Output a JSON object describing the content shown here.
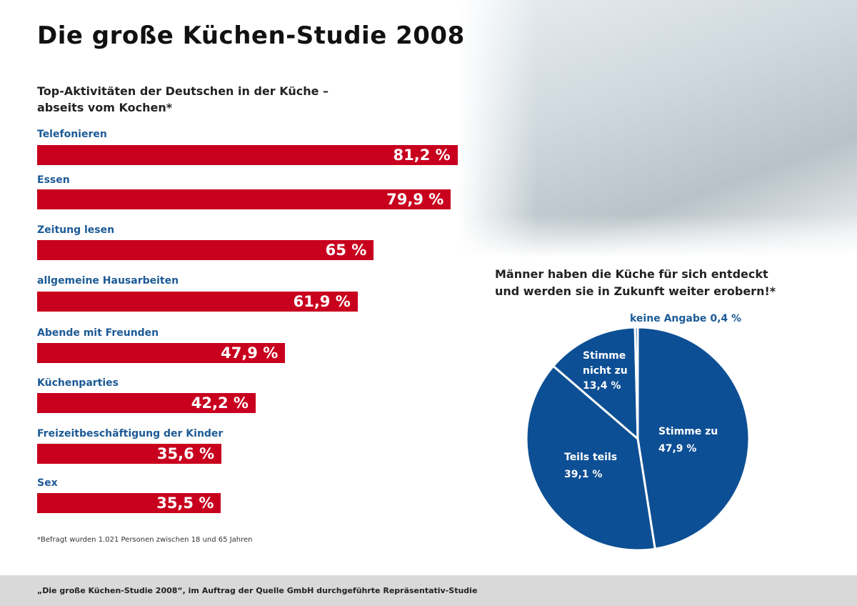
{
  "title": "Die große Küchen-Studie 2008",
  "footnote": "*Befragt wurden 1.021 Personen zwischen 18 und 65 Jahren",
  "footer": "„Die große Küchen-Studie 2008“, im Auftrag der Quelle GmbH durchgeführte Repräsentativ-Studie",
  "colors": {
    "bar": "#c8001e",
    "pie": "#0d4f94",
    "label": "#1c5a96"
  },
  "chart_data": [
    {
      "type": "bar",
      "orientation": "horizontal",
      "title_lines": [
        "Top-Aktivitäten der Deutschen in der Küche –",
        "abseits vom Kochen*"
      ],
      "categories": [
        "Telefonieren",
        "Essen",
        "Zeitung lesen",
        "allgemeine Hausarbeiten",
        "Abende mit Freunden",
        "Küchenparties",
        "Freizeitbeschäftigung der Kinder",
        "Sex"
      ],
      "values": [
        81.2,
        79.9,
        65,
        61.9,
        47.9,
        42.2,
        35.6,
        35.5
      ],
      "data_labels": [
        "81,2 %",
        "79,9 %",
        "65 %",
        "61,9 %",
        "47,9 %",
        "42,2 %",
        "35,6 %",
        "35,5 %"
      ],
      "unit": "%"
    },
    {
      "type": "pie",
      "title_lines": [
        "Männer haben die Küche für sich entdeckt",
        "und werden sie in Zukunft weiter erobern!*"
      ],
      "slices": [
        {
          "label": "Stimme zu",
          "value": 47.9,
          "value_label": "47,9 %"
        },
        {
          "label": "Teils teils",
          "value": 39.1,
          "value_label": "39,1 %"
        },
        {
          "label": "Stimme nicht zu",
          "value": 13.4,
          "value_label": "13,4 %"
        },
        {
          "label": "keine Angabe",
          "value": 0.4,
          "value_label": "0,4 %"
        }
      ]
    }
  ]
}
